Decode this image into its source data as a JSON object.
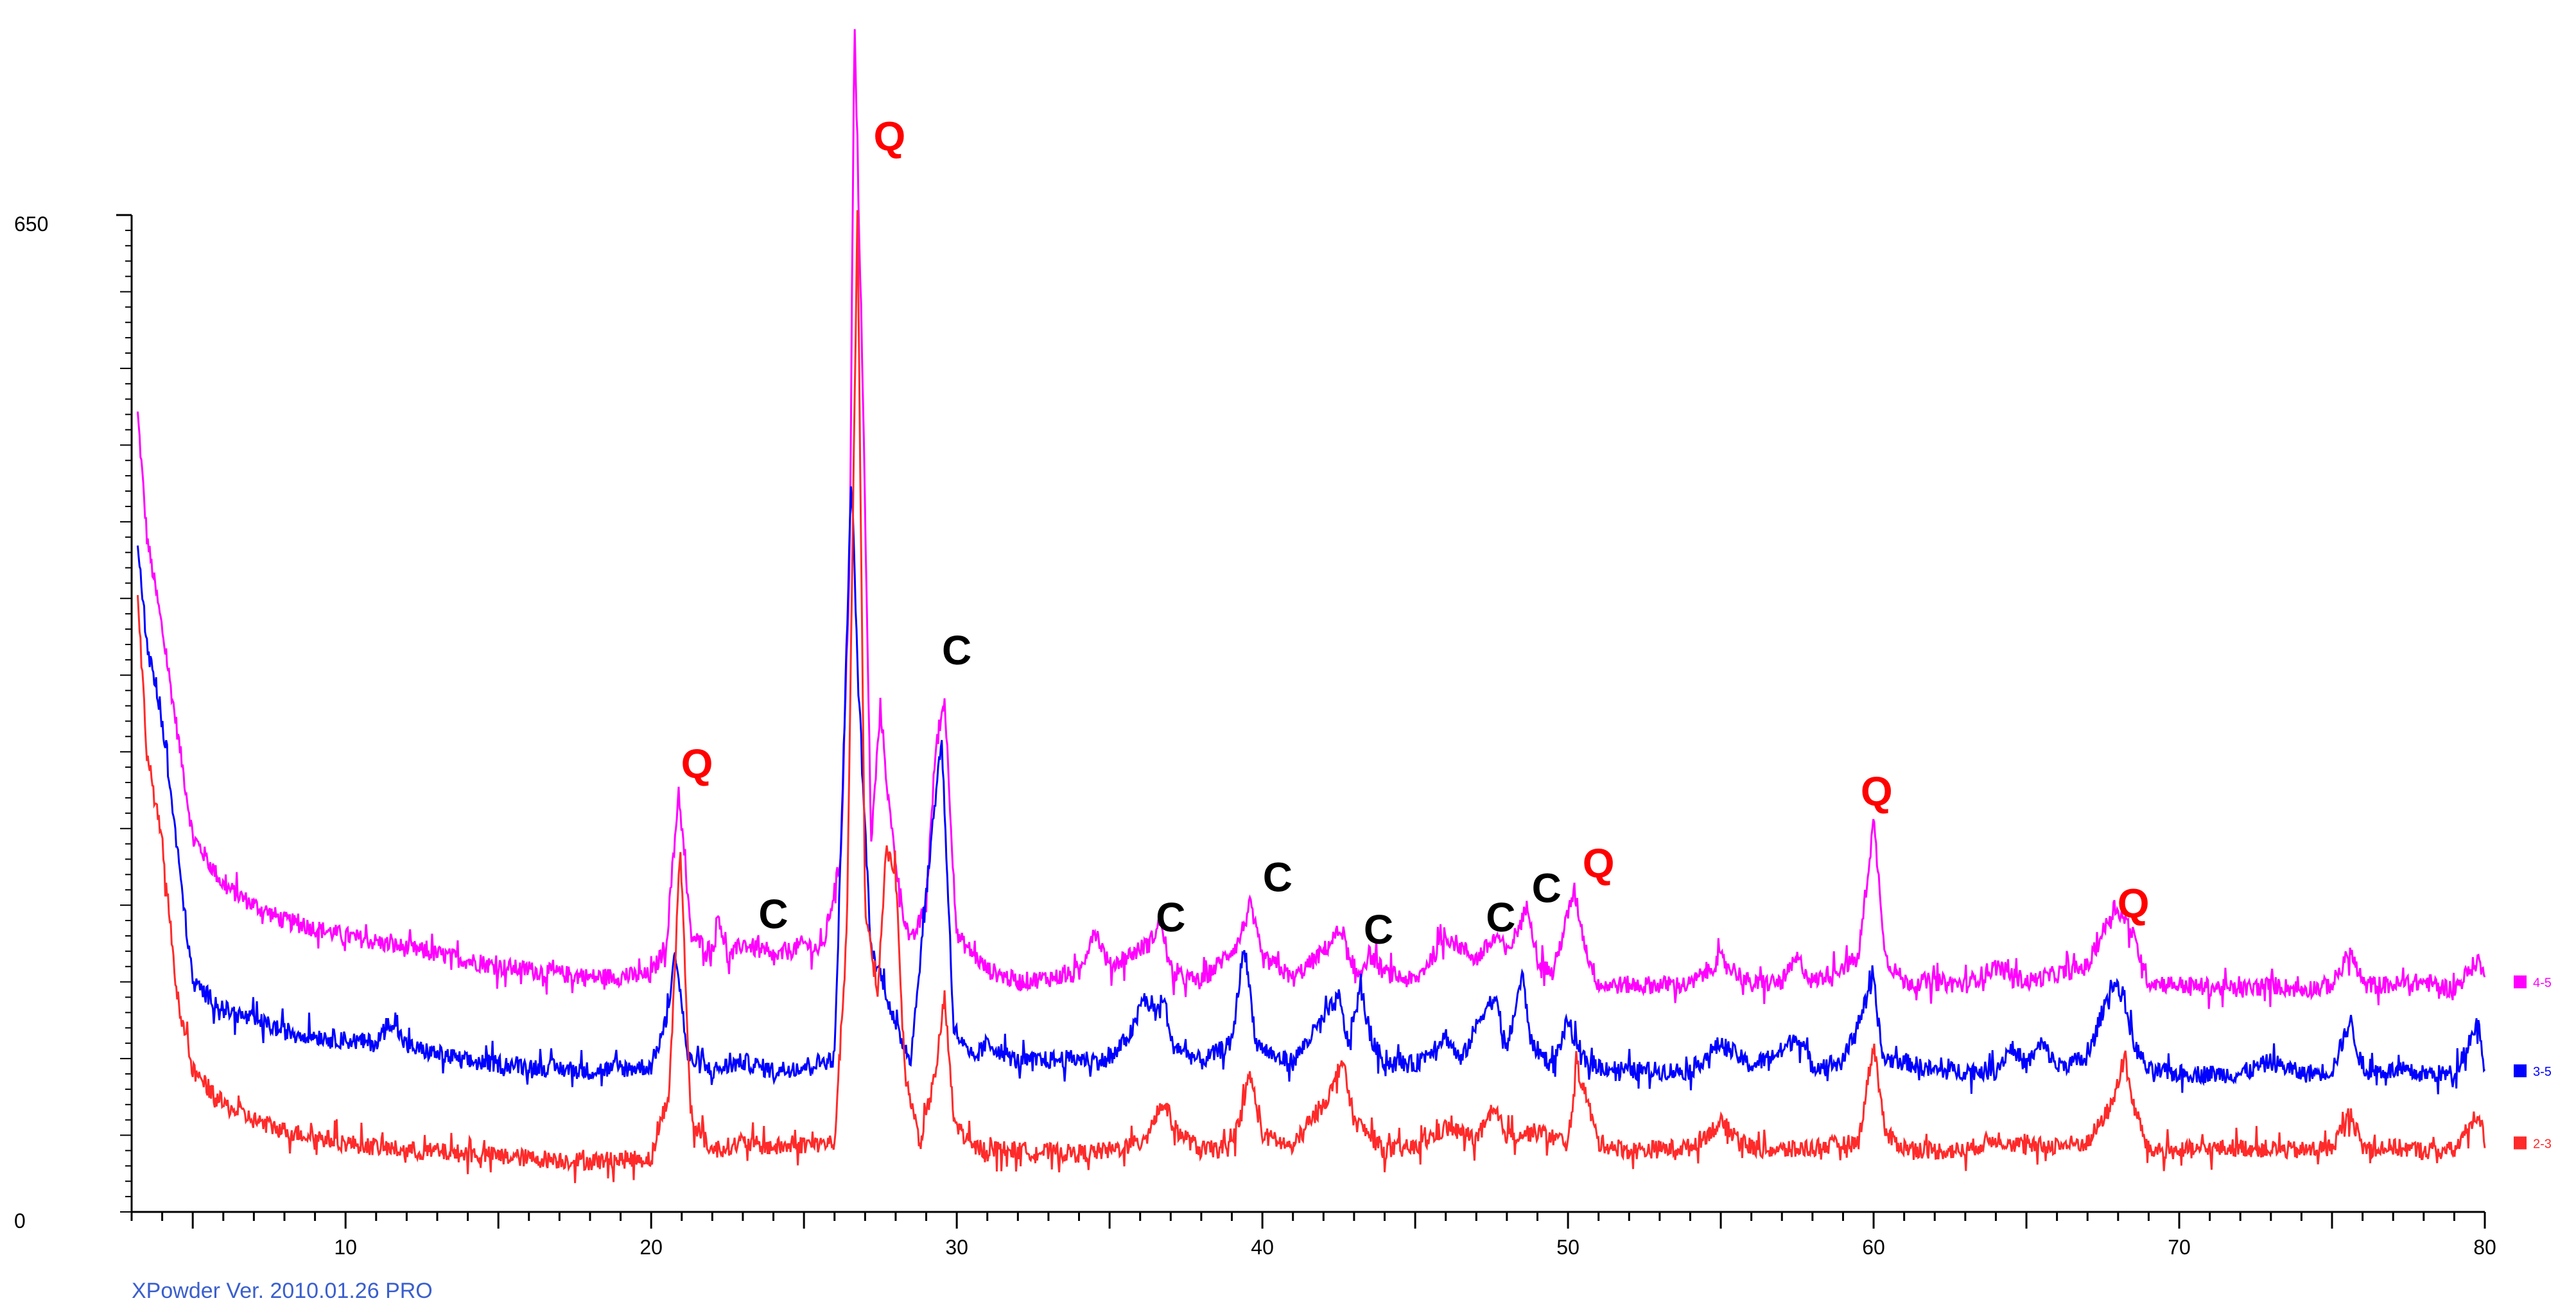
{
  "footer_text": "XPowder Ver. 2010.01.26 PRO",
  "colors": {
    "axis": "#000000",
    "footer": "#3a5fcd",
    "q_label": "#ff0000",
    "c_label": "#000000"
  },
  "chart_data": {
    "type": "line",
    "title": "",
    "xlabel": "",
    "ylabel": "",
    "xlim": [
      3,
      80
    ],
    "ylim": [
      0,
      650
    ],
    "x_ticks": [
      10,
      20,
      30,
      40,
      50,
      60,
      70,
      80
    ],
    "y_ticks": [
      0,
      650
    ],
    "grid": false,
    "legend": "right",
    "noise_amplitude": 6,
    "series": [
      {
        "name": "4-5",
        "color": "#ff00ff",
        "points": [
          [
            3.2,
            520
          ],
          [
            3.5,
            440
          ],
          [
            4,
            380
          ],
          [
            5,
            245
          ],
          [
            6,
            213
          ],
          [
            7,
            200
          ],
          [
            8,
            190
          ],
          [
            10,
            180
          ],
          [
            15,
            160
          ],
          [
            18,
            153
          ],
          [
            20,
            154
          ],
          [
            20.5,
            175
          ],
          [
            20.9,
            275
          ],
          [
            21.3,
            180
          ],
          [
            22,
            170
          ],
          [
            22.2,
            195
          ],
          [
            22.5,
            165
          ],
          [
            23,
            175
          ],
          [
            23.4,
            172
          ],
          [
            24,
            165
          ],
          [
            25,
            175
          ],
          [
            25.6,
            170
          ],
          [
            26.2,
            230
          ],
          [
            26.5,
            430
          ],
          [
            26.65,
            775
          ],
          [
            26.9,
            560
          ],
          [
            27.2,
            240
          ],
          [
            27.5,
            330
          ],
          [
            27.8,
            260
          ],
          [
            28.2,
            200
          ],
          [
            28.5,
            175
          ],
          [
            29,
            200
          ],
          [
            29.3,
            300
          ],
          [
            29.6,
            335
          ],
          [
            30,
            180
          ],
          [
            31,
            158
          ],
          [
            32,
            150
          ],
          [
            34,
            155
          ],
          [
            34.5,
            185
          ],
          [
            35,
            160
          ],
          [
            36.3,
            175
          ],
          [
            36.7,
            190
          ],
          [
            37,
            155
          ],
          [
            38,
            150
          ],
          [
            39.2,
            175
          ],
          [
            39.6,
            200
          ],
          [
            40,
            165
          ],
          [
            40.5,
            160
          ],
          [
            41,
            152
          ],
          [
            42,
            170
          ],
          [
            42.6,
            185
          ],
          [
            43,
            150
          ],
          [
            43.5,
            168
          ],
          [
            44,
            156
          ],
          [
            45,
            150
          ],
          [
            46,
            180
          ],
          [
            47,
            165
          ],
          [
            47.7,
            180
          ],
          [
            48,
            168
          ],
          [
            48.7,
            200
          ],
          [
            49,
            165
          ],
          [
            49.5,
            155
          ],
          [
            50.2,
            210
          ],
          [
            50.6,
            170
          ],
          [
            51,
            148
          ],
          [
            52,
            148
          ],
          [
            54,
            148
          ],
          [
            55,
            165
          ],
          [
            56,
            148
          ],
          [
            57,
            150
          ],
          [
            57.5,
            165
          ],
          [
            58,
            150
          ],
          [
            59.5,
            165
          ],
          [
            60,
            255
          ],
          [
            60.4,
            165
          ],
          [
            61,
            150
          ],
          [
            62,
            150
          ],
          [
            63,
            148
          ],
          [
            64,
            160
          ],
          [
            65,
            150
          ],
          [
            67,
            160
          ],
          [
            67.9,
            200
          ],
          [
            68.4,
            185
          ],
          [
            69,
            150
          ],
          [
            70,
            148
          ],
          [
            72,
            145
          ],
          [
            73,
            148
          ],
          [
            74,
            145
          ],
          [
            75,
            148
          ],
          [
            75.6,
            170
          ],
          [
            76,
            148
          ],
          [
            77,
            148
          ],
          [
            78,
            150
          ],
          [
            79,
            145
          ],
          [
            79.8,
            165
          ],
          [
            80,
            150
          ]
        ],
        "peak_labels": [
          {
            "text": "Q",
            "x": 21.5,
            "y": 283,
            "kind": "Q",
            "size": 64
          },
          {
            "text": "C",
            "x": 24.0,
            "y": 185,
            "kind": "C",
            "size": 64
          },
          {
            "text": "Q",
            "x": 27.8,
            "y": 692,
            "kind": "Q",
            "size": 64
          },
          {
            "text": "C",
            "x": 30.0,
            "y": 357,
            "kind": "C",
            "size": 64
          },
          {
            "text": "C",
            "x": 37.0,
            "y": 183,
            "kind": "C",
            "size": 64
          },
          {
            "text": "C",
            "x": 40.5,
            "y": 209,
            "kind": "C",
            "size": 64
          },
          {
            "text": "C",
            "x": 43.8,
            "y": 175,
            "kind": "C",
            "size": 64
          },
          {
            "text": "C",
            "x": 47.8,
            "y": 183,
            "kind": "C",
            "size": 64
          },
          {
            "text": "C",
            "x": 49.3,
            "y": 202,
            "kind": "C",
            "size": 64
          },
          {
            "text": "Q",
            "x": 51.0,
            "y": 218,
            "kind": "Q",
            "size": 64
          },
          {
            "text": "Q",
            "x": 60.1,
            "y": 265,
            "kind": "Q",
            "size": 52
          },
          {
            "text": "Q",
            "x": 68.5,
            "y": 192,
            "kind": "Q",
            "size": 64
          }
        ]
      },
      {
        "name": "3-5",
        "color": "#0000ff",
        "points": [
          [
            3.2,
            440
          ],
          [
            3.5,
            370
          ],
          [
            4,
            320
          ],
          [
            5,
            150
          ],
          [
            6,
            132
          ],
          [
            7,
            125
          ],
          [
            8,
            118
          ],
          [
            10,
            112
          ],
          [
            11,
            110
          ],
          [
            11.5,
            125
          ],
          [
            12,
            108
          ],
          [
            14,
            98
          ],
          [
            18,
            92
          ],
          [
            20,
            95
          ],
          [
            20.5,
            125
          ],
          [
            20.8,
            170
          ],
          [
            21.2,
            100
          ],
          [
            22,
            92
          ],
          [
            23,
            98
          ],
          [
            24,
            92
          ],
          [
            25,
            95
          ],
          [
            26,
            100
          ],
          [
            26.3,
            300
          ],
          [
            26.55,
            480
          ],
          [
            26.8,
            330
          ],
          [
            27.2,
            170
          ],
          [
            27.6,
            150
          ],
          [
            28,
            120
          ],
          [
            28.5,
            100
          ],
          [
            29.2,
            250
          ],
          [
            29.5,
            310
          ],
          [
            29.9,
            120
          ],
          [
            30.5,
            98
          ],
          [
            31,
            110
          ],
          [
            32,
            98
          ],
          [
            34,
            100
          ],
          [
            35,
            98
          ],
          [
            35.8,
            120
          ],
          [
            36.1,
            140
          ],
          [
            36.5,
            130
          ],
          [
            36.8,
            140
          ],
          [
            37,
            110
          ],
          [
            38,
            98
          ],
          [
            39,
            110
          ],
          [
            39.4,
            175
          ],
          [
            39.8,
            110
          ],
          [
            40.5,
            100
          ],
          [
            41,
            98
          ],
          [
            42.5,
            140
          ],
          [
            42.8,
            110
          ],
          [
            43.2,
            145
          ],
          [
            43.6,
            110
          ],
          [
            44,
            98
          ],
          [
            45,
            96
          ],
          [
            46,
            115
          ],
          [
            46.5,
            98
          ],
          [
            47.2,
            130
          ],
          [
            47.6,
            140
          ],
          [
            48,
            105
          ],
          [
            48.5,
            155
          ],
          [
            48.8,
            110
          ],
          [
            49.5,
            95
          ],
          [
            50,
            125
          ],
          [
            50.4,
            100
          ],
          [
            51,
            95
          ],
          [
            52,
            92
          ],
          [
            54,
            92
          ],
          [
            55,
            110
          ],
          [
            56,
            95
          ],
          [
            57,
            105
          ],
          [
            57.5,
            115
          ],
          [
            58,
            95
          ],
          [
            59,
            98
          ],
          [
            60,
            150
          ],
          [
            60.3,
            100
          ],
          [
            61,
            98
          ],
          [
            62,
            92
          ],
          [
            64,
            92
          ],
          [
            64.5,
            108
          ],
          [
            65,
            96
          ],
          [
            65.5,
            110
          ],
          [
            66,
            95
          ],
          [
            67,
            100
          ],
          [
            67.8,
            150
          ],
          [
            68.2,
            140
          ],
          [
            68.5,
            110
          ],
          [
            69,
            92
          ],
          [
            70,
            90
          ],
          [
            72,
            90
          ],
          [
            73,
            98
          ],
          [
            74,
            90
          ],
          [
            75,
            92
          ],
          [
            75.6,
            125
          ],
          [
            76,
            92
          ],
          [
            77,
            92
          ],
          [
            78,
            90
          ],
          [
            79,
            90
          ],
          [
            79.8,
            125
          ],
          [
            80,
            92
          ]
        ],
        "peak_labels": []
      },
      {
        "name": "2-3",
        "color": "#ff2a2a",
        "points": [
          [
            3.2,
            400
          ],
          [
            3.5,
            300
          ],
          [
            4,
            240
          ],
          [
            4.5,
            140
          ],
          [
            5,
            92
          ],
          [
            6,
            70
          ],
          [
            7,
            60
          ],
          [
            8,
            53
          ],
          [
            10,
            45
          ],
          [
            12,
            40
          ],
          [
            14,
            38
          ],
          [
            16,
            35
          ],
          [
            18,
            33
          ],
          [
            20,
            35
          ],
          [
            20.6,
            80
          ],
          [
            20.95,
            240
          ],
          [
            21.3,
            60
          ],
          [
            22,
            40
          ],
          [
            23,
            45
          ],
          [
            24,
            42
          ],
          [
            25,
            44
          ],
          [
            26,
            45
          ],
          [
            26.4,
            180
          ],
          [
            26.75,
            650
          ],
          [
            27.0,
            200
          ],
          [
            27.4,
            140
          ],
          [
            27.7,
            240
          ],
          [
            28,
            220
          ],
          [
            28.3,
            90
          ],
          [
            28.8,
            45
          ],
          [
            29.3,
            90
          ],
          [
            29.6,
            140
          ],
          [
            29.9,
            60
          ],
          [
            30.5,
            42
          ],
          [
            32,
            40
          ],
          [
            34,
            38
          ],
          [
            35,
            40
          ],
          [
            36,
            45
          ],
          [
            36.8,
            72
          ],
          [
            37.1,
            55
          ],
          [
            38,
            40
          ],
          [
            39,
            42
          ],
          [
            39.6,
            90
          ],
          [
            40,
            50
          ],
          [
            41,
            42
          ],
          [
            42.3,
            80
          ],
          [
            42.6,
            100
          ],
          [
            43,
            60
          ],
          [
            44,
            40
          ],
          [
            45,
            42
          ],
          [
            46,
            55
          ],
          [
            47,
            48
          ],
          [
            47.6,
            65
          ],
          [
            48,
            50
          ],
          [
            49,
            52
          ],
          [
            50,
            45
          ],
          [
            50.3,
            95
          ],
          [
            50.6,
            75
          ],
          [
            51,
            45
          ],
          [
            52,
            40
          ],
          [
            54,
            42
          ],
          [
            55,
            58
          ],
          [
            56,
            42
          ],
          [
            57,
            40
          ],
          [
            58,
            42
          ],
          [
            59.5,
            45
          ],
          [
            60,
            110
          ],
          [
            60.4,
            50
          ],
          [
            61,
            42
          ],
          [
            62,
            40
          ],
          [
            63,
            40
          ],
          [
            64,
            48
          ],
          [
            65,
            42
          ],
          [
            67,
            45
          ],
          [
            67.8,
            70
          ],
          [
            68.2,
            100
          ],
          [
            68.5,
            70
          ],
          [
            69,
            40
          ],
          [
            70,
            40
          ],
          [
            72,
            42
          ],
          [
            74,
            40
          ],
          [
            75,
            42
          ],
          [
            75.6,
            65
          ],
          [
            76,
            42
          ],
          [
            77,
            42
          ],
          [
            78,
            40
          ],
          [
            79,
            40
          ],
          [
            79.8,
            65
          ],
          [
            80,
            45
          ]
        ],
        "peak_labels": []
      }
    ]
  }
}
